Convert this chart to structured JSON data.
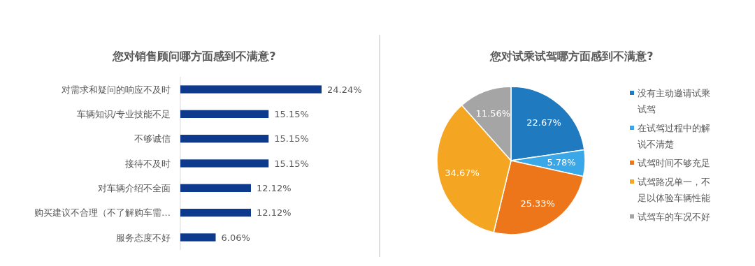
{
  "chart_data": [
    {
      "type": "bar",
      "orientation": "horizontal",
      "title": "您对销售顾问哪方面感到不满意?",
      "categories": [
        "对需求和疑问的响应不及时",
        "车辆知识/专业技能不足",
        "不够诚信",
        "接待不及时",
        "对车辆介绍不全面",
        "购买建议不合理（不了解购车需…",
        "服务态度不好"
      ],
      "values": [
        24.24,
        15.15,
        15.15,
        15.15,
        12.12,
        12.12,
        6.06
      ],
      "color": "#0d3a8c",
      "value_labels": [
        "24.24%",
        "15.15%",
        "15.15%",
        "15.15%",
        "12.12%",
        "12.12%",
        "6.06%"
      ],
      "xlim": [
        0,
        24.24
      ],
      "tick_labels": "y"
    },
    {
      "type": "pie",
      "title": "您对试乘试驾哪方面感到不满意?",
      "categories": [
        "没有主动邀请试乘试驾",
        "在试驾过程中的解说不清楚",
        "试驾时间不够充足",
        "试驾路况单一，不足以体验车辆性能",
        "试驾车的车况不好"
      ],
      "values": [
        22.67,
        5.78,
        25.33,
        34.67,
        11.56
      ],
      "colors": [
        "#1f7ac0",
        "#3aa8e8",
        "#ed761b",
        "#f4a623",
        "#a5a5a5"
      ],
      "value_labels": [
        "22.67%",
        "5.78%",
        "25.33%",
        "34.67%",
        "11.56%"
      ],
      "legend": "right"
    }
  ]
}
